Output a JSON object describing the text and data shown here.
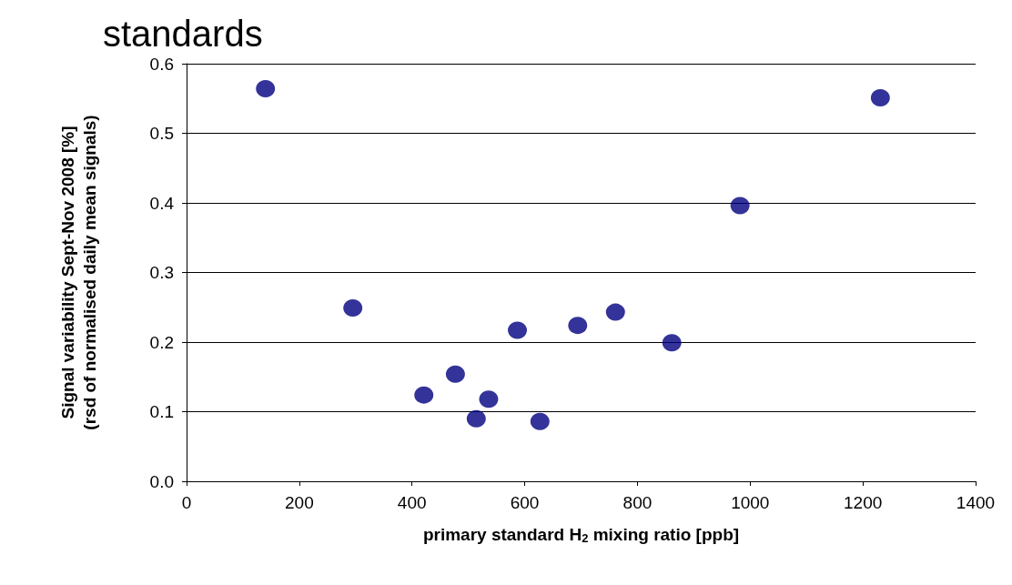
{
  "chart_data": {
    "type": "scatter",
    "title": "standards",
    "xlabel": "primary standard H$_{2}$ mixing ratio [ppb]",
    "ylabel": "Signal variability Sept-Nov 2008 [%]\n(rsd of normalised daily mean signals)",
    "x": [
      140,
      295,
      421,
      477,
      514,
      536,
      587,
      627,
      694,
      761,
      861,
      982,
      1231
    ],
    "values": [
      0.564,
      0.249,
      0.124,
      0.154,
      0.09,
      0.118,
      0.217,
      0.086,
      0.224,
      0.243,
      0.199,
      0.396,
      0.551
    ],
    "color": "#000080",
    "marker": "circle",
    "xlim": [
      0,
      1400
    ],
    "xticks": [
      0,
      200,
      400,
      600,
      800,
      1000,
      1200,
      1400
    ],
    "ylim": [
      0,
      0.6
    ],
    "yticks": [
      {
        "value": 0,
        "label": "0.0"
      },
      0.1,
      0.2,
      0.3,
      0.4,
      0.5,
      0.6
    ],
    "grid": "y"
  }
}
